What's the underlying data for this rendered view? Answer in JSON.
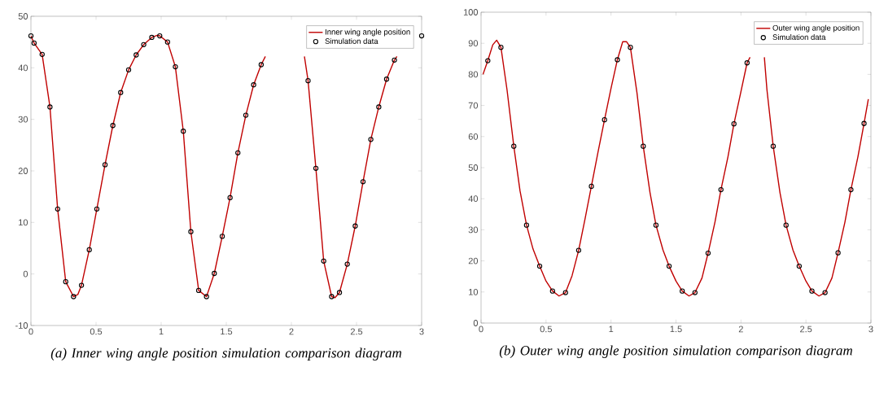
{
  "chart_data": [
    {
      "type": "line",
      "xlim": [
        0,
        3
      ],
      "ylim": [
        -10,
        50
      ],
      "xticks": [
        0,
        0.5,
        1,
        1.5,
        2,
        2.5,
        3
      ],
      "yticks": [
        -10,
        0,
        10,
        20,
        30,
        40,
        50
      ],
      "grid": false,
      "legend": "top right",
      "annotations": [
        "(a)  Inner wing angle position simulation comparison  diagram"
      ],
      "series": [
        {
          "name": "Inner wing angle position",
          "type": "line",
          "color": "#c00000",
          "marker": "none",
          "line_style": "solid",
          "x": [
            0,
            0.024,
            0.086,
            0.146,
            0.205,
            0.267,
            0.327,
            0.36,
            0.388,
            0.448,
            0.506,
            0.569,
            0.629,
            0.689,
            0.75,
            0.808,
            0.866,
            0.928,
            0.97,
            0.989,
            1.049,
            1.109,
            1.17,
            1.228,
            1.288,
            1.348,
            1.408,
            1.469,
            1.529,
            1.589,
            1.65,
            1.71,
            1.768,
            1.8,
            1.95,
            2.1,
            2.128,
            2.188,
            2.248,
            2.309,
            2.335,
            2.369,
            2.429,
            2.49,
            2.55,
            2.61,
            2.671,
            2.731,
            2.791,
            2.81
          ],
          "values": [
            46.2,
            44.8,
            42.6,
            32.4,
            12.6,
            -1.5,
            -4.4,
            -4.0,
            -2.2,
            4.7,
            12.6,
            21.2,
            28.8,
            35.2,
            39.6,
            42.5,
            44.5,
            45.9,
            46.3,
            46.2,
            45.0,
            40.2,
            27.7,
            8.2,
            -3.2,
            -4.4,
            0.1,
            7.3,
            14.8,
            23.5,
            30.8,
            36.7,
            40.6,
            42.2,
            null,
            42.2,
            37.5,
            20.5,
            2.5,
            -4.4,
            -4.6,
            -3.6,
            1.9,
            9.3,
            17.9,
            26.1,
            32.4,
            37.8,
            41.5,
            42.2
          ]
        },
        {
          "name": "Simulation data",
          "type": "scatter",
          "color": "#000000",
          "marker": "circle",
          "x": [
            0,
            0.024,
            0.086,
            0.146,
            0.205,
            0.267,
            0.327,
            0.388,
            0.448,
            0.506,
            0.569,
            0.629,
            0.689,
            0.75,
            0.808,
            0.866,
            0.928,
            0.989,
            1.049,
            1.109,
            1.17,
            1.228,
            1.288,
            1.348,
            1.408,
            1.469,
            1.529,
            1.589,
            1.65,
            1.71,
            1.768,
            2.128,
            2.188,
            2.248,
            2.309,
            2.369,
            2.429,
            2.49,
            2.55,
            2.61,
            2.671,
            2.731,
            2.791,
            3.0
          ],
          "values": [
            46.2,
            44.8,
            42.6,
            32.4,
            12.6,
            -1.5,
            -4.4,
            -2.2,
            4.7,
            12.6,
            21.2,
            28.8,
            35.2,
            39.6,
            42.5,
            44.5,
            45.9,
            46.2,
            45.0,
            40.2,
            27.7,
            8.2,
            -3.2,
            -4.4,
            0.1,
            7.3,
            14.8,
            23.5,
            30.8,
            36.7,
            40.6,
            37.5,
            20.5,
            2.5,
            -4.4,
            -3.6,
            1.9,
            9.3,
            17.9,
            26.1,
            32.4,
            37.8,
            41.5,
            46.2
          ]
        }
      ]
    },
    {
      "type": "line",
      "xlim": [
        0,
        3
      ],
      "ylim": [
        0,
        100
      ],
      "xticks": [
        0,
        0.5,
        1,
        1.5,
        2,
        2.5,
        3
      ],
      "yticks": [
        0,
        10,
        20,
        30,
        40,
        50,
        60,
        70,
        80,
        90,
        100
      ],
      "grid": false,
      "legend": "top right",
      "annotations": [
        "(b) Outer wing angle position simulation comparison  diagram"
      ],
      "series": [
        {
          "name": "Outer wing angle position",
          "type": "line",
          "color": "#c00000",
          "marker": "none",
          "line_style": "solid",
          "x": [
            0.015,
            0.052,
            0.09,
            0.12,
            0.153,
            0.2,
            0.252,
            0.3,
            0.35,
            0.4,
            0.451,
            0.5,
            0.55,
            0.6,
            0.65,
            0.7,
            0.751,
            0.8,
            0.849,
            0.9,
            0.95,
            1.0,
            1.049,
            1.09,
            1.12,
            1.149,
            1.2,
            1.248,
            1.3,
            1.346,
            1.4,
            1.447,
            1.5,
            1.548,
            1.6,
            1.646,
            1.7,
            1.747,
            1.8,
            1.846,
            1.9,
            1.946,
            2.0,
            2.047,
            2.07,
            2.12,
            2.18,
            2.2,
            2.248,
            2.3,
            2.347,
            2.4,
            2.448,
            2.5,
            2.546,
            2.6,
            2.647,
            2.7,
            2.747,
            2.8,
            2.846,
            2.9,
            2.947,
            2.98
          ],
          "values": [
            80,
            84.4,
            89.5,
            91,
            88.7,
            75,
            56.9,
            42.5,
            31.5,
            23.8,
            18.3,
            13.5,
            10.3,
            8.7,
            9.8,
            15.2,
            23.4,
            33.5,
            44,
            55,
            65.4,
            75.5,
            84.7,
            90.5,
            90.5,
            88.7,
            74,
            56.9,
            42,
            31.5,
            23.5,
            18.3,
            13.5,
            10.3,
            8.7,
            9.8,
            14.5,
            22.5,
            32.5,
            42.9,
            53.5,
            64.1,
            74.5,
            83.7,
            85.5,
            null,
            85.5,
            75,
            56.9,
            42,
            31.5,
            23.5,
            18.3,
            13.5,
            10.3,
            8.7,
            9.8,
            14.5,
            22.6,
            32.5,
            42.9,
            53.5,
            64.2,
            72
          ]
        },
        {
          "name": "Simulation data",
          "type": "scatter",
          "color": "#000000",
          "marker": "circle",
          "x": [
            0.052,
            0.153,
            0.252,
            0.35,
            0.451,
            0.55,
            0.65,
            0.751,
            0.849,
            0.95,
            1.049,
            1.149,
            1.248,
            1.346,
            1.447,
            1.548,
            1.646,
            1.747,
            1.846,
            1.946,
            2.047,
            2.248,
            2.347,
            2.448,
            2.546,
            2.647,
            2.747,
            2.846,
            2.947
          ],
          "values": [
            84.4,
            88.7,
            56.9,
            31.5,
            18.3,
            10.3,
            9.8,
            23.4,
            44.0,
            65.4,
            84.7,
            88.7,
            56.9,
            31.5,
            18.3,
            10.3,
            9.8,
            22.5,
            42.9,
            64.1,
            83.7,
            56.9,
            31.5,
            18.3,
            10.3,
            9.8,
            22.6,
            42.9,
            64.2
          ]
        }
      ]
    }
  ]
}
